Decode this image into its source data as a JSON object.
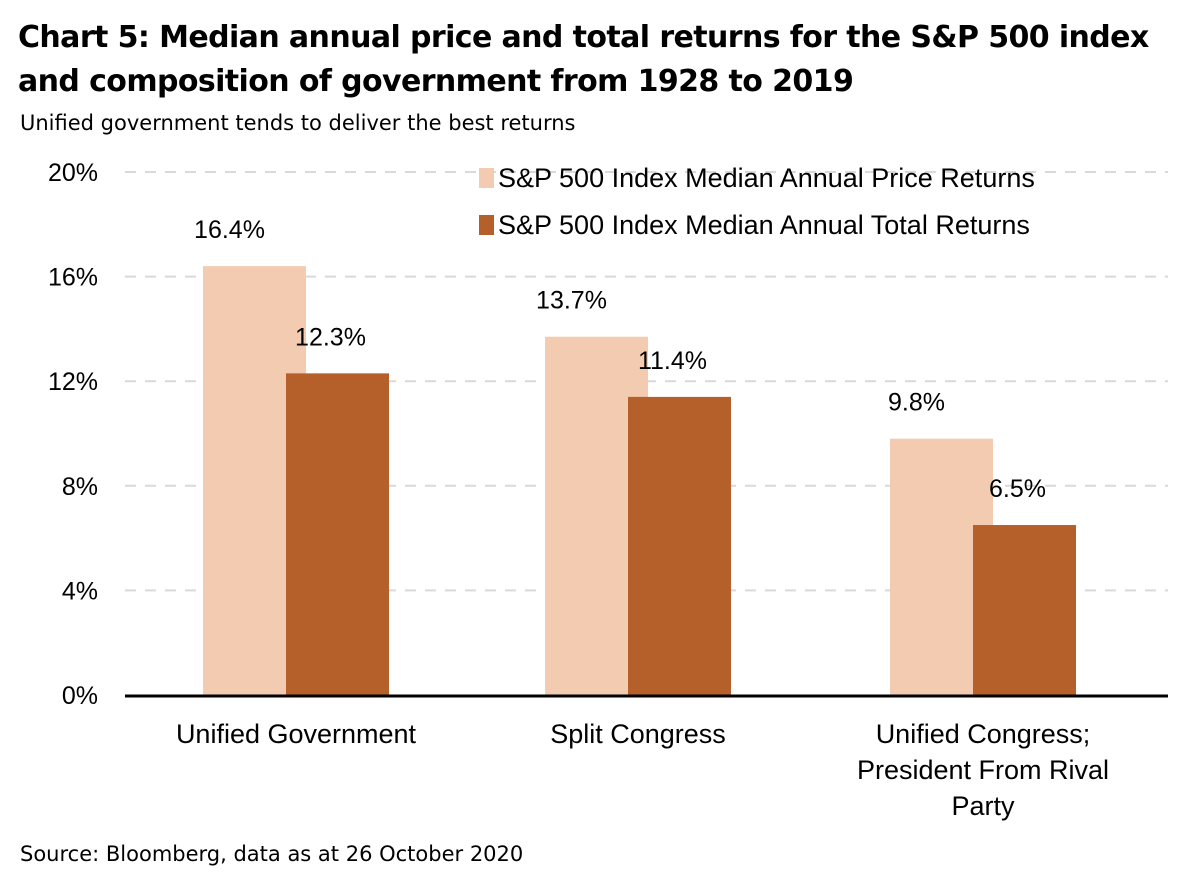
{
  "title": "Chart 5: Median annual price and total returns for the S&P 500 index and composition of government from 1928 to 2019",
  "subtitle": "Unified government tends to deliver the best returns",
  "source": "Source: Bloomberg, data as at 26 October 2020",
  "colors": {
    "price": "#f2cbb0",
    "total": "#b5602b",
    "grid": "#d9d9d9",
    "axis": "#000000"
  },
  "chart_data": {
    "type": "bar",
    "categories": [
      [
        "Unified Government"
      ],
      [
        "Split Congress"
      ],
      [
        "Unified Congress;",
        "President From Rival",
        "Party"
      ]
    ],
    "series": [
      {
        "name": "S&P 500 Index Median Annual Price Returns",
        "values": [
          16.4,
          13.7,
          9.8
        ],
        "labels": [
          "16.4%",
          "13.7%",
          "9.8%"
        ]
      },
      {
        "name": "S&P 500 Index Median Annual Total Returns",
        "values": [
          12.3,
          11.4,
          6.5
        ],
        "labels": [
          "12.3%",
          "11.4%",
          "6.5%"
        ]
      }
    ],
    "ylim": [
      0,
      20
    ],
    "yticks": [
      0,
      4,
      8,
      12,
      16,
      20
    ],
    "ytick_labels": [
      "0%",
      "4%",
      "8%",
      "12%",
      "16%",
      "20%"
    ],
    "grid": true,
    "legend_position": "top-right"
  }
}
